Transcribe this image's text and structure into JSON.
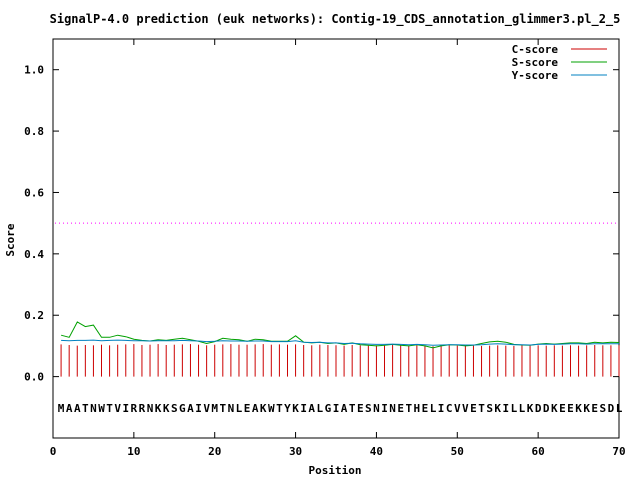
{
  "chart_data": {
    "type": "line",
    "title": "SignalP-4.0 prediction (euk networks): Contig-19_CDS_annotation_glimmer3.pl_2_5",
    "xlabel": "Position",
    "ylabel": "Score",
    "xlim": [
      0,
      70
    ],
    "ylim": [
      -0.2,
      1.1
    ],
    "xticks": [
      "0",
      "10",
      "20",
      "30",
      "40",
      "50",
      "60",
      "70"
    ],
    "yticks": [
      "0.0",
      "0.2",
      "0.4",
      "0.6",
      "0.8",
      "1.0"
    ],
    "legend_position": "top-right",
    "threshold": 0.5,
    "sequence": "MAATNWTVIRRNKKSGAIVMTNLEAKWTYKIALGIATESNINETHELICVVETSKILLKDDKEEKKESDL",
    "series": [
      {
        "name": "C-score",
        "color": "#cc0000",
        "style": "impulses",
        "x": [
          1,
          2,
          3,
          4,
          5,
          6,
          7,
          8,
          9,
          10,
          11,
          12,
          13,
          14,
          15,
          16,
          17,
          18,
          19,
          20,
          21,
          22,
          23,
          24,
          25,
          26,
          27,
          28,
          29,
          30,
          31,
          32,
          33,
          34,
          35,
          36,
          37,
          38,
          39,
          40,
          41,
          42,
          43,
          44,
          45,
          46,
          47,
          48,
          49,
          50,
          51,
          52,
          53,
          54,
          55,
          56,
          57,
          58,
          59,
          60,
          61,
          62,
          63,
          64,
          65,
          66,
          67,
          68,
          69,
          70
        ],
        "values": [
          0.105,
          0.103,
          0.101,
          0.103,
          0.102,
          0.104,
          0.102,
          0.104,
          0.105,
          0.106,
          0.103,
          0.104,
          0.106,
          0.103,
          0.104,
          0.105,
          0.106,
          0.104,
          0.102,
          0.104,
          0.105,
          0.106,
          0.104,
          0.104,
          0.105,
          0.106,
          0.104,
          0.105,
          0.104,
          0.105,
          0.103,
          0.102,
          0.104,
          0.103,
          0.102,
          0.101,
          0.103,
          0.102,
          0.101,
          0.102,
          0.101,
          0.103,
          0.102,
          0.101,
          0.102,
          0.1,
          0.099,
          0.101,
          0.102,
          0.101,
          0.1,
          0.101,
          0.1,
          0.101,
          0.102,
          0.101,
          0.1,
          0.102,
          0.101,
          0.102,
          0.101,
          0.102,
          0.101,
          0.102,
          0.101,
          0.102,
          0.103,
          0.102,
          0.102,
          0.102
        ]
      },
      {
        "name": "S-score",
        "color": "#00a000",
        "style": "line",
        "x": [
          1,
          2,
          3,
          4,
          5,
          6,
          7,
          8,
          9,
          10,
          11,
          12,
          13,
          14,
          15,
          16,
          17,
          18,
          19,
          20,
          21,
          22,
          23,
          24,
          25,
          26,
          27,
          28,
          29,
          30,
          31,
          32,
          33,
          34,
          35,
          36,
          37,
          38,
          39,
          40,
          41,
          42,
          43,
          44,
          45,
          46,
          47,
          48,
          49,
          50,
          51,
          52,
          53,
          54,
          55,
          56,
          57,
          58,
          59,
          60,
          61,
          62,
          63,
          64,
          65,
          66,
          67,
          68,
          69,
          70
        ],
        "values": [
          0.135,
          0.128,
          0.178,
          0.163,
          0.168,
          0.128,
          0.128,
          0.135,
          0.13,
          0.122,
          0.118,
          0.116,
          0.12,
          0.118,
          0.122,
          0.125,
          0.12,
          0.115,
          0.108,
          0.114,
          0.125,
          0.122,
          0.12,
          0.115,
          0.122,
          0.12,
          0.115,
          0.115,
          0.115,
          0.133,
          0.112,
          0.11,
          0.112,
          0.108,
          0.11,
          0.105,
          0.11,
          0.104,
          0.102,
          0.1,
          0.102,
          0.105,
          0.102,
          0.1,
          0.104,
          0.1,
          0.094,
          0.1,
          0.104,
          0.103,
          0.1,
          0.102,
          0.108,
          0.113,
          0.115,
          0.112,
          0.105,
          0.103,
          0.102,
          0.106,
          0.108,
          0.106,
          0.108,
          0.11,
          0.11,
          0.108,
          0.112,
          0.11,
          0.112,
          0.111
        ]
      },
      {
        "name": "Y-score",
        "color": "#0080c0",
        "style": "line",
        "x": [
          1,
          2,
          3,
          4,
          5,
          6,
          7,
          8,
          9,
          10,
          11,
          12,
          13,
          14,
          15,
          16,
          17,
          18,
          19,
          20,
          21,
          22,
          23,
          24,
          25,
          26,
          27,
          28,
          29,
          30,
          31,
          32,
          33,
          34,
          35,
          36,
          37,
          38,
          39,
          40,
          41,
          42,
          43,
          44,
          45,
          46,
          47,
          48,
          49,
          50,
          51,
          52,
          53,
          54,
          55,
          56,
          57,
          58,
          59,
          60,
          61,
          62,
          63,
          64,
          65,
          66,
          67,
          68,
          69,
          70
        ],
        "values": [
          0.118,
          0.117,
          0.118,
          0.118,
          0.119,
          0.117,
          0.118,
          0.119,
          0.118,
          0.117,
          0.117,
          0.116,
          0.117,
          0.117,
          0.117,
          0.118,
          0.117,
          0.116,
          0.114,
          0.115,
          0.117,
          0.116,
          0.116,
          0.115,
          0.116,
          0.116,
          0.114,
          0.114,
          0.114,
          0.117,
          0.112,
          0.111,
          0.112,
          0.11,
          0.11,
          0.108,
          0.109,
          0.107,
          0.106,
          0.105,
          0.105,
          0.106,
          0.105,
          0.104,
          0.105,
          0.104,
          0.102,
          0.103,
          0.104,
          0.104,
          0.103,
          0.103,
          0.104,
          0.106,
          0.107,
          0.106,
          0.104,
          0.104,
          0.103,
          0.105,
          0.106,
          0.105,
          0.106,
          0.107,
          0.107,
          0.106,
          0.107,
          0.107,
          0.107,
          0.107
        ]
      }
    ]
  }
}
